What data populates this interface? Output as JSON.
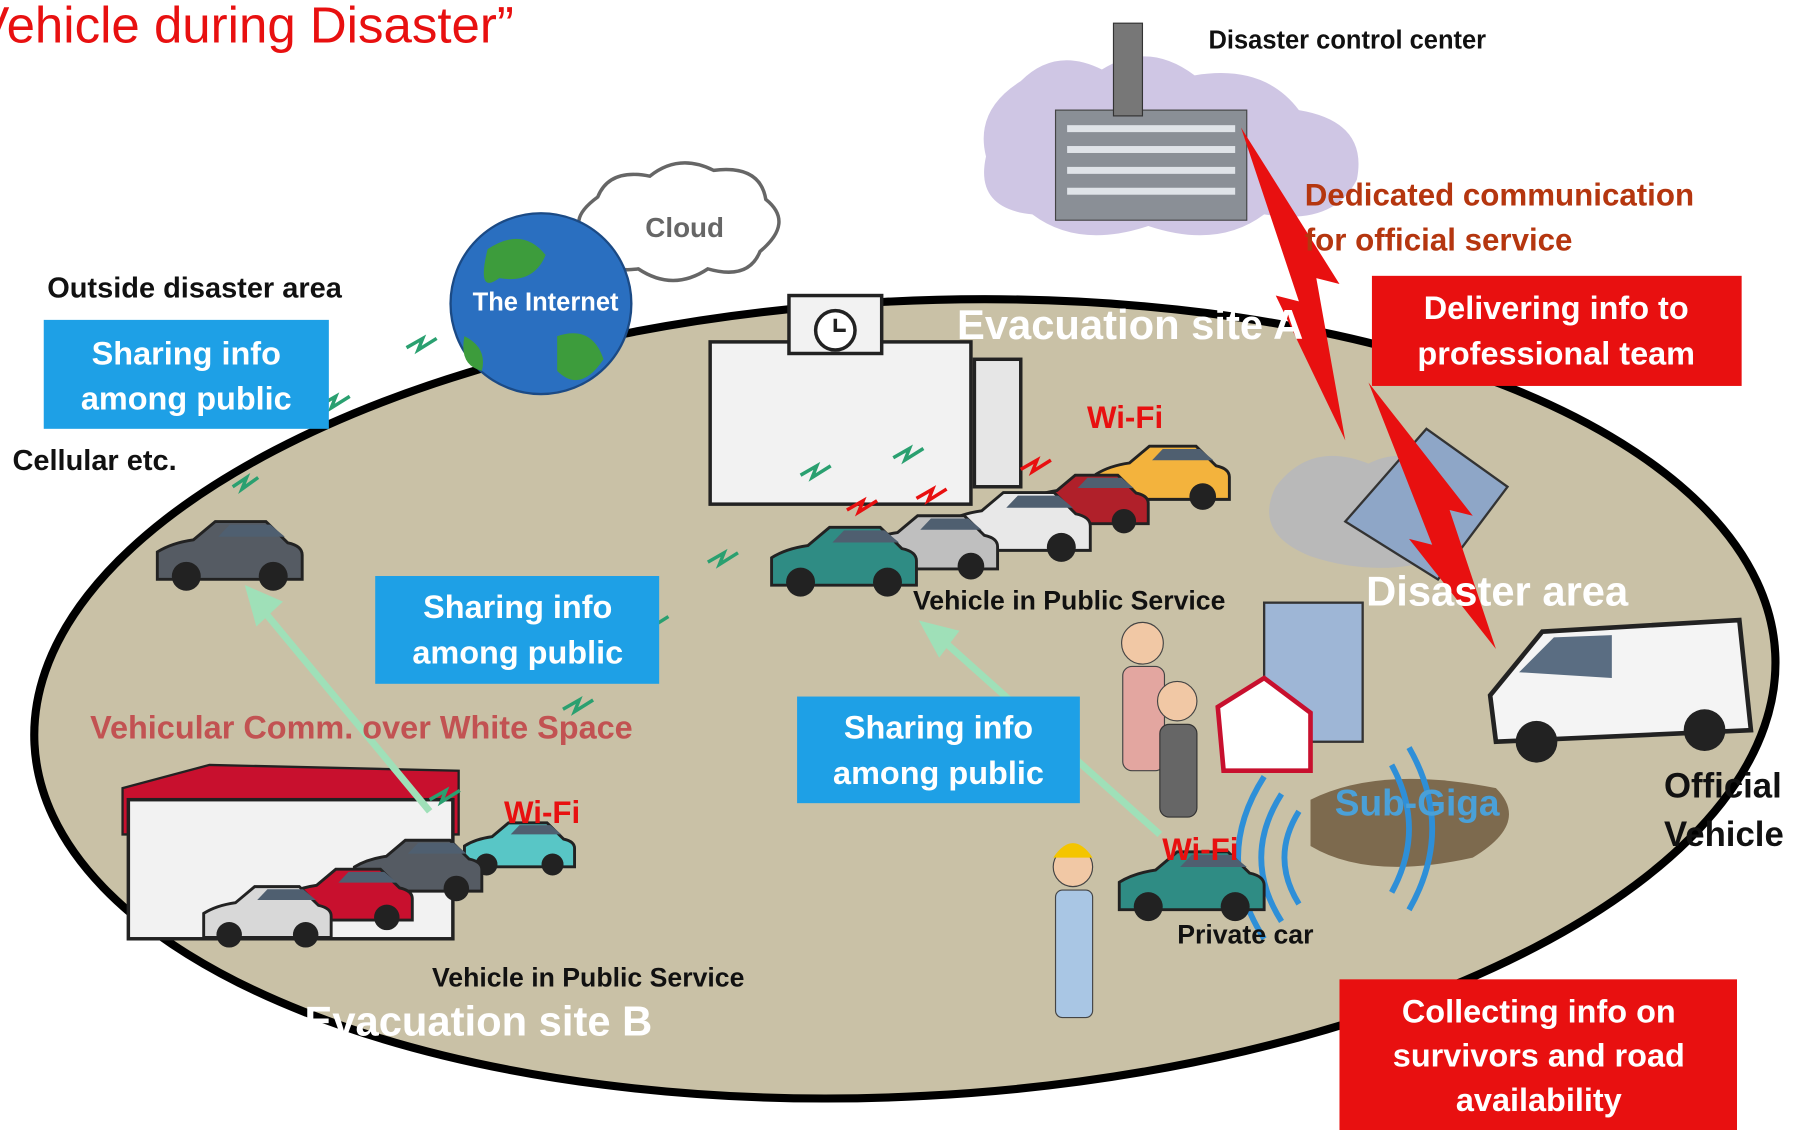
{
  "title": "Vehicle during Disaster”",
  "control_center": "Disaster control center",
  "dedicated": [
    "Dedicated communication",
    "for official service"
  ],
  "cloud": "Cloud",
  "internet": "The Internet",
  "outside_area": "Outside disaster area",
  "cellular": "Cellular etc.",
  "site_a": "Evacuation site A",
  "site_b": "Evacuation site B",
  "disaster_area": "Disaster area",
  "white_space": "Vehicular Comm. over White Space",
  "sub_giga": "Sub-Giga",
  "private_car": "Private car",
  "official_vehicle": [
    "Official",
    "Vehicle"
  ],
  "wifi": [
    "Wi-Fi",
    "Wi-Fi",
    "Wi-Fi"
  ],
  "public_service": [
    "Vehicle in Public Service",
    "Vehicle in Public Service"
  ],
  "sharing_boxes": [
    [
      "Sharing info",
      "among public"
    ],
    [
      "Sharing info",
      "among public"
    ],
    [
      "Sharing info",
      "among public"
    ]
  ],
  "red_boxes": [
    [
      "Delivering info to",
      "professional team"
    ],
    [
      "Collecting info on",
      "survivors and road",
      "availability"
    ]
  ]
}
